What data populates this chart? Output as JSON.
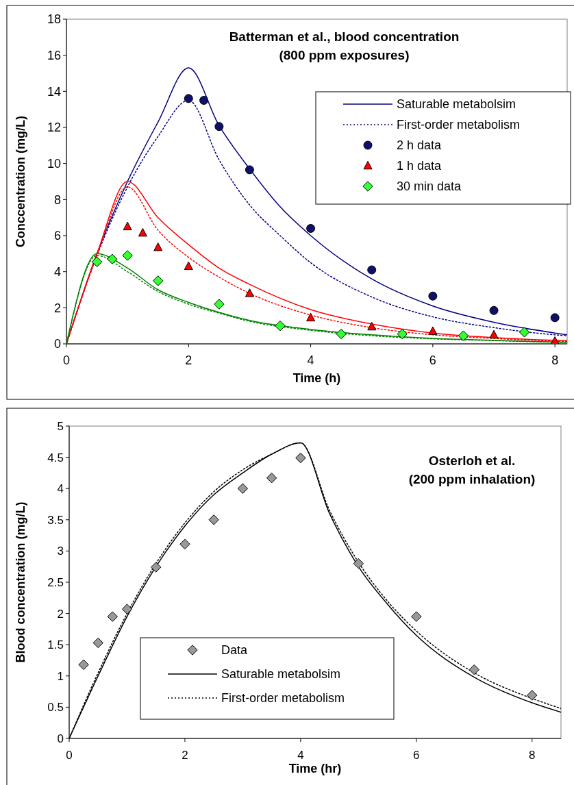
{
  "chart_data": [
    {
      "type": "line",
      "title": "Batterman et al., blood concentration\n(800 ppm exposures)",
      "xlabel": "Time (h)",
      "ylabel": "Conccentration (mg/L)",
      "xlim": [
        0,
        8.2
      ],
      "xticks": [
        0,
        2,
        4,
        6,
        8
      ],
      "ylim": [
        0,
        18
      ],
      "yticks": [
        0,
        2,
        4,
        6,
        8,
        10,
        12,
        14,
        16,
        18
      ],
      "grid": false,
      "legend": "top right",
      "series": [
        {
          "name": "Saturable metabolsim",
          "type": "line",
          "line_style": "solid",
          "marker": "none",
          "color": "#000080",
          "x": [
            0,
            0.5,
            1,
            1.5,
            2,
            2.5,
            3,
            3.5,
            4,
            5,
            6,
            7,
            8,
            8.2
          ],
          "values": [
            0,
            5.0,
            9.0,
            12.3,
            15.3,
            12.1,
            9.7,
            7.6,
            6.0,
            3.6,
            2.1,
            1.2,
            0.6,
            0.5
          ]
        },
        {
          "name": "First-order metabolism",
          "type": "line",
          "line_style": "dotted",
          "marker": "none",
          "color": "#000080",
          "x": [
            0,
            0.5,
            1,
            1.5,
            2,
            2.5,
            3,
            3.5,
            4,
            5,
            6,
            7,
            8,
            8.2
          ],
          "values": [
            0,
            4.9,
            8.7,
            11.5,
            13.5,
            10.2,
            7.7,
            6.0,
            4.5,
            2.6,
            1.5,
            0.9,
            0.5,
            0.45
          ]
        },
        {
          "name": "2 h data",
          "type": "scatter",
          "marker": "circle",
          "color": "#10106a",
          "x": [
            2,
            2.25,
            2.5,
            3,
            4,
            5,
            6,
            7,
            8
          ],
          "values": [
            13.6,
            13.5,
            12.05,
            9.65,
            6.4,
            4.1,
            2.65,
            1.85,
            1.45
          ]
        },
        {
          "name": "1 h data",
          "type": "scatter",
          "marker": "triangle",
          "color": "#ff0000",
          "x": [
            1,
            1.25,
            1.5,
            2,
            3,
            4,
            5,
            6,
            7,
            8
          ],
          "values": [
            6.5,
            6.15,
            5.35,
            4.3,
            2.8,
            1.45,
            0.95,
            0.7,
            0.5,
            0.15
          ]
        },
        {
          "name": "30 min data",
          "type": "scatter",
          "marker": "diamond",
          "color": "#33ff33",
          "x": [
            0.5,
            0.75,
            1,
            1.5,
            2.5,
            3.5,
            4.5,
            5.5,
            6.5,
            7.5
          ],
          "values": [
            4.55,
            4.7,
            4.9,
            3.5,
            2.2,
            1.0,
            0.55,
            0.55,
            0.45,
            0.65
          ]
        },
        {
          "type": "line",
          "line_style": "solid",
          "marker": "none",
          "color": "#ff0000",
          "x": [
            0,
            0.5,
            1,
            1.5,
            2,
            2.5,
            3,
            4,
            5,
            6,
            7,
            8,
            8.2
          ],
          "values": [
            0,
            5.0,
            9.0,
            7.0,
            5.5,
            4.2,
            3.3,
            1.9,
            1.1,
            0.6,
            0.35,
            0.2,
            0.18
          ]
        },
        {
          "type": "line",
          "line_style": "dotted",
          "marker": "none",
          "color": "#ff0000",
          "x": [
            0,
            0.5,
            1,
            1.5,
            2,
            2.5,
            3,
            4,
            5,
            6,
            7,
            8,
            8.2
          ],
          "values": [
            0,
            4.9,
            8.7,
            6.3,
            4.8,
            3.7,
            2.8,
            1.6,
            0.9,
            0.5,
            0.3,
            0.15,
            0.13
          ]
        },
        {
          "type": "line",
          "line_style": "solid",
          "marker": "none",
          "color": "#008000",
          "x": [
            0,
            0.5,
            1,
            1.5,
            2,
            2.5,
            3,
            4,
            5,
            6,
            7,
            8,
            8.2
          ],
          "values": [
            0,
            5.0,
            4.2,
            3.0,
            2.3,
            1.75,
            1.3,
            0.8,
            0.5,
            0.3,
            0.2,
            0.1,
            0.09
          ]
        },
        {
          "type": "line",
          "line_style": "dotted",
          "marker": "none",
          "color": "#008000",
          "x": [
            0,
            0.5,
            1,
            1.5,
            2,
            2.5,
            3,
            4,
            5,
            6,
            7,
            8,
            8.2
          ],
          "values": [
            0,
            4.9,
            4.0,
            2.9,
            2.2,
            1.7,
            1.25,
            0.75,
            0.45,
            0.28,
            0.18,
            0.09,
            0.08
          ]
        }
      ]
    },
    {
      "type": "line",
      "title": "Osterloh et al.\n(200 ppm inhalation)",
      "xlabel": "Time (hr)",
      "ylabel": "Blood concentration (mg/L)",
      "xlim": [
        0,
        8.5
      ],
      "xticks": [
        0,
        2,
        4,
        6,
        8
      ],
      "ylim": [
        0,
        5
      ],
      "yticks": [
        0,
        0.5,
        1,
        1.5,
        2,
        2.5,
        3,
        3.5,
        4,
        4.5,
        5
      ],
      "grid": false,
      "legend": "bottom",
      "series": [
        {
          "name": "Data",
          "type": "scatter",
          "marker": "diamond",
          "color": "#999999",
          "x": [
            0.25,
            0.5,
            0.75,
            1,
            1.5,
            2,
            2.5,
            3,
            3.5,
            4,
            5,
            6,
            7,
            8
          ],
          "values": [
            1.18,
            1.53,
            1.95,
            2.07,
            2.74,
            3.11,
            3.5,
            4.0,
            4.17,
            4.49,
            2.8,
            1.95,
            1.1,
            0.69
          ]
        },
        {
          "name": "Saturable metabolsim",
          "type": "line",
          "line_style": "solid",
          "marker": "none",
          "color": "#000000",
          "x": [
            0,
            0.5,
            1,
            1.5,
            2,
            2.5,
            3,
            3.5,
            4,
            4.5,
            5,
            5.5,
            6,
            7,
            8,
            8.5
          ],
          "values": [
            0,
            1.0,
            1.95,
            2.75,
            3.4,
            3.9,
            4.25,
            4.55,
            4.73,
            3.6,
            2.75,
            2.15,
            1.65,
            0.98,
            0.57,
            0.42
          ]
        },
        {
          "name": "First-order metabolism",
          "type": "line",
          "line_style": "dotted",
          "marker": "none",
          "color": "#000000",
          "x": [
            0,
            0.5,
            1,
            1.5,
            2,
            2.5,
            3,
            3.5,
            4,
            4.5,
            5,
            5.5,
            6,
            7,
            8,
            8.5
          ],
          "values": [
            0,
            1.05,
            2.0,
            2.8,
            3.45,
            3.95,
            4.3,
            4.55,
            4.73,
            3.65,
            2.82,
            2.2,
            1.72,
            1.05,
            0.64,
            0.48
          ]
        }
      ]
    }
  ]
}
